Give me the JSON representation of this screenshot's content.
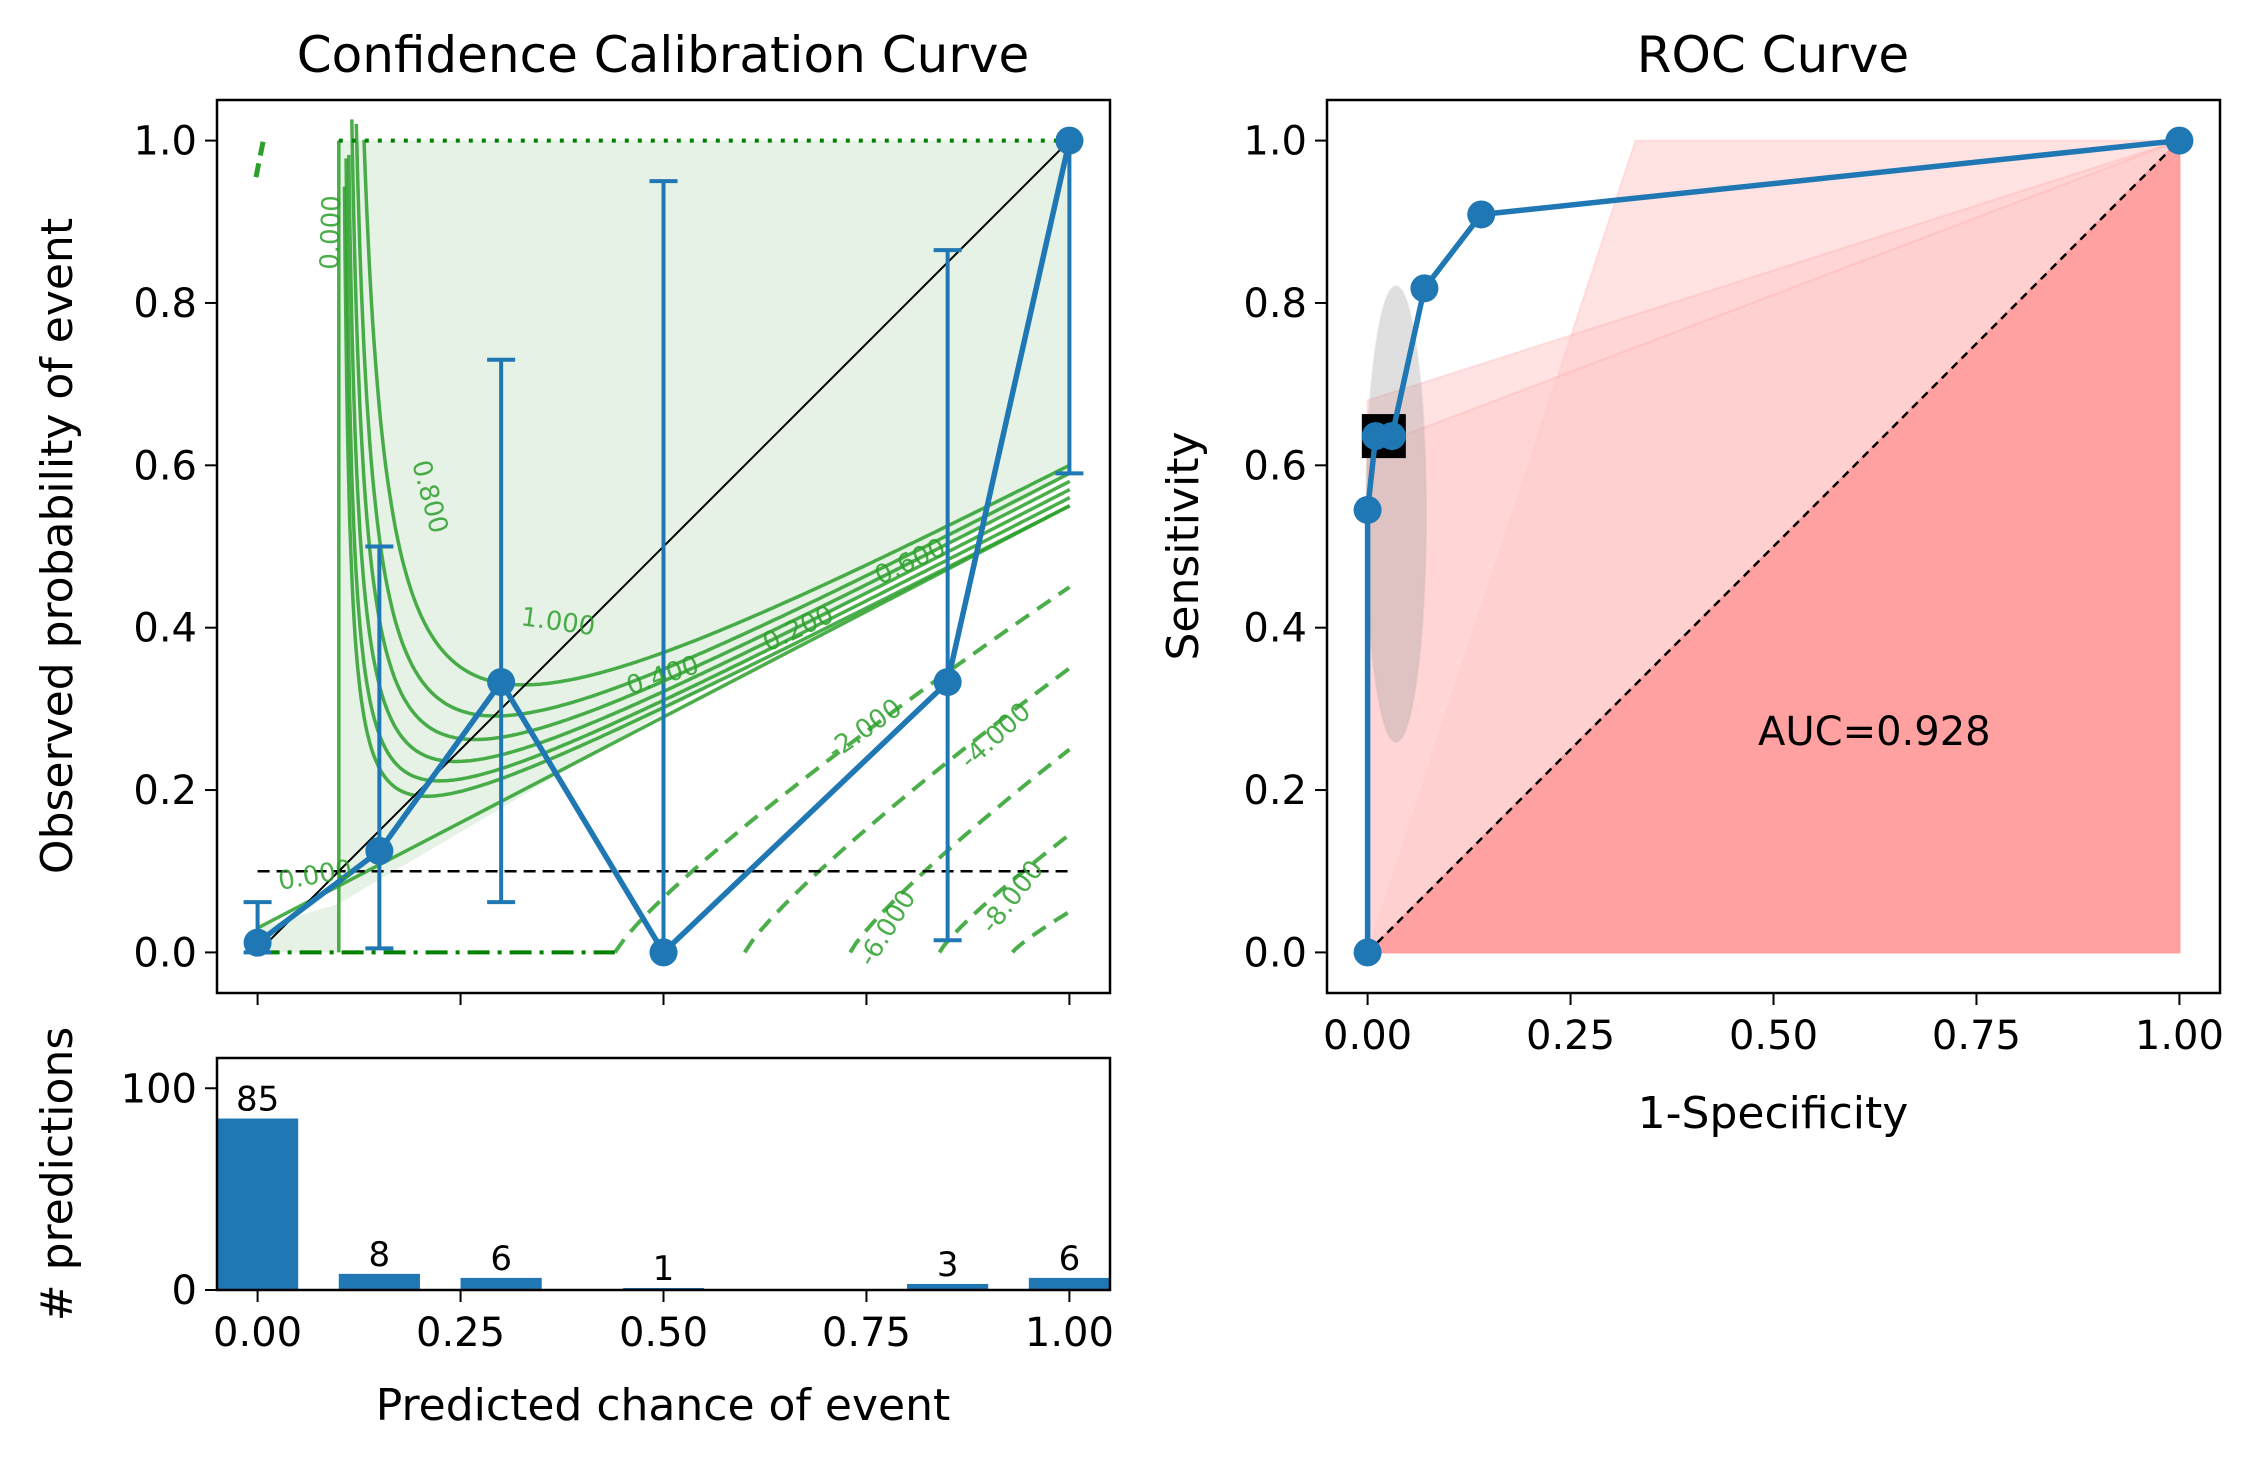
{
  "colors": {
    "series": "#1f77b4",
    "contour": "#2ca02c",
    "dark_green": "#008000",
    "roc_fill": "#ff9999",
    "roc_fill_light": "#ffcccc",
    "band": "#e5f2e5"
  },
  "calibration": {
    "title": "Confidence Calibration Curve",
    "ylabel": "Observed probability of event",
    "xlim": [
      -0.05,
      1.05
    ],
    "ylim": [
      -0.05,
      1.05
    ],
    "y_ticks": [
      "0.0",
      "0.2",
      "0.4",
      "0.6",
      "0.8",
      "1.0"
    ],
    "y_tick_values": [
      0.0,
      0.2,
      0.4,
      0.6,
      0.8,
      1.0
    ],
    "x_tick_values": [
      0.0,
      0.25,
      0.5,
      0.75,
      1.0
    ],
    "prevalence": 0.1,
    "contour_labels": [
      "0.000",
      "0.800",
      "1.000",
      "0.400",
      "0.200",
      "0.600",
      "0.000",
      "-2.000",
      "-4.000",
      "-6.000",
      "-8.000"
    ]
  },
  "histogram": {
    "ylabel": "# predictions",
    "xlabel": "Predicted chance of event",
    "y_ticks": [
      "0",
      "100"
    ],
    "y_tick_values": [
      0,
      100
    ],
    "x_ticks": [
      "0.00",
      "0.25",
      "0.50",
      "0.75",
      "1.00"
    ],
    "x_tick_values": [
      0.0,
      0.25,
      0.5,
      0.75,
      1.0
    ],
    "ylim": [
      0,
      115
    ]
  },
  "roc": {
    "title": "ROC Curve",
    "xlabel": "1-Specificity",
    "ylabel": "Sensitivity",
    "auc_text": "AUC=0.928",
    "x_ticks": [
      "0.00",
      "0.25",
      "0.50",
      "0.75",
      "1.00"
    ],
    "x_tick_values": [
      0.0,
      0.25,
      0.5,
      0.75,
      1.0
    ],
    "y_ticks": [
      "0.0",
      "0.2",
      "0.4",
      "0.6",
      "0.8",
      "1.0"
    ],
    "y_tick_values": [
      0.0,
      0.2,
      0.4,
      0.6,
      0.8,
      1.0
    ],
    "xlim": [
      -0.05,
      1.05
    ],
    "ylim": [
      -0.05,
      1.05
    ]
  },
  "chart_data": [
    {
      "type": "line",
      "title": "Confidence Calibration Curve",
      "ylabel": "Observed probability of event",
      "series": [
        {
          "x": [
            0.0,
            0.15,
            0.3,
            0.5,
            0.85,
            1.0
          ],
          "y": [
            0.012,
            0.125,
            0.333,
            0.0,
            0.333,
            1.0
          ],
          "err_low": [
            0.0,
            0.005,
            0.062,
            0.0,
            0.015,
            0.59
          ],
          "err_high": [
            0.062,
            0.5,
            0.73,
            0.95,
            0.865,
            1.0
          ]
        }
      ],
      "reference_lines": {
        "diagonal": [
          [
            0,
            0
          ],
          [
            1,
            1
          ]
        ],
        "prevalence": 0.1
      }
    },
    {
      "type": "bar",
      "xlabel": "Predicted chance of event",
      "ylabel": "# predictions",
      "x": [
        0.0,
        0.15,
        0.3,
        0.5,
        0.85,
        1.0
      ],
      "values": [
        85,
        8,
        6,
        1,
        3,
        6
      ],
      "ylim": [
        0,
        115
      ]
    },
    {
      "type": "line",
      "title": "ROC Curve",
      "xlabel": "1-Specificity",
      "ylabel": "Sensitivity",
      "x": [
        0.0,
        0.0,
        0.01,
        0.03,
        0.07,
        0.14,
        1.0
      ],
      "y": [
        0.0,
        0.545,
        0.636,
        0.636,
        0.818,
        0.909,
        1.0
      ],
      "auc": 0.928,
      "operating_point": {
        "x": 0.02,
        "y": 0.636
      }
    }
  ]
}
